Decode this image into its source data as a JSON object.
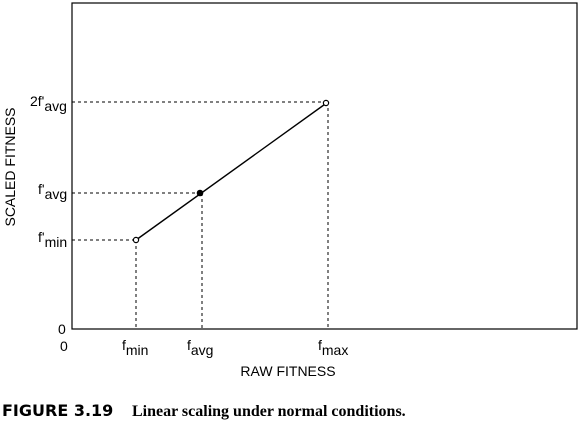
{
  "axes": {
    "x_label": "RAW FITNESS",
    "y_label": "SCALED FITNESS",
    "origin_x_label": "0",
    "origin_y_label": "0"
  },
  "x_ticks": {
    "fmin": {
      "main": "f",
      "sub": "min"
    },
    "favg": {
      "main": "f",
      "sub": "avg"
    },
    "fmax": {
      "main": "f",
      "sub": "max"
    }
  },
  "y_ticks": {
    "fmin_scaled": {
      "main": "f'",
      "sub": "min"
    },
    "favg_scaled": {
      "main": "f'",
      "sub": "avg"
    },
    "two_favg_scaled": {
      "main": "2f'",
      "sub": "avg"
    }
  },
  "caption": {
    "number": "FIGURE 3.19",
    "text": "Linear scaling under normal conditions."
  }
}
